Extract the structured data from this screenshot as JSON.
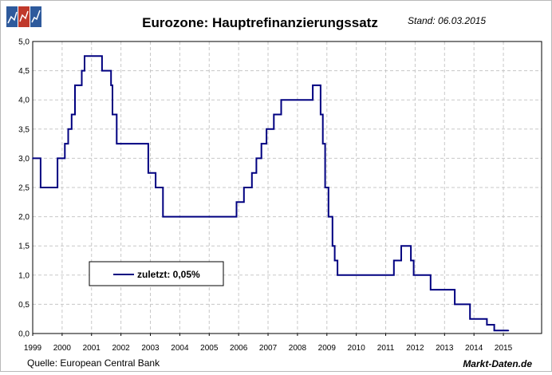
{
  "chart_data": {
    "type": "line",
    "title": "Eurozone: Hauptrefinanzierungssatz",
    "stand": "Stand: 06.03.2015",
    "source": "Quelle: European Central Bank",
    "brand": "Markt-Daten.de",
    "legend": {
      "label": "zuletzt: 0,05%",
      "placement": "bottom-left"
    },
    "xlabel": "",
    "ylabel": "",
    "xlim": [
      1999,
      2016.3
    ],
    "ylim": [
      0,
      5
    ],
    "grid": true,
    "x_ticks": [
      "1999",
      "2000",
      "2001",
      "2002",
      "2003",
      "2004",
      "2005",
      "2006",
      "2007",
      "2008",
      "2009",
      "2010",
      "2011",
      "2012",
      "2013",
      "2014",
      "2015"
    ],
    "y_ticks": [
      "0,0",
      "0,5",
      "1,0",
      "1,5",
      "2,0",
      "2,5",
      "3,0",
      "3,5",
      "4,0",
      "4,5",
      "5,0"
    ],
    "series": [
      {
        "name": "",
        "color": "#000080",
        "step": "post",
        "points": [
          [
            "1999-01-01",
            3.0
          ],
          [
            "1999-04-09",
            2.5
          ],
          [
            "1999-11-05",
            3.0
          ],
          [
            "2000-02-04",
            3.25
          ],
          [
            "2000-03-17",
            3.5
          ],
          [
            "2000-04-28",
            3.75
          ],
          [
            "2000-06-09",
            4.25
          ],
          [
            "2000-09-01",
            4.5
          ],
          [
            "2000-10-06",
            4.75
          ],
          [
            "2001-05-11",
            4.5
          ],
          [
            "2001-08-31",
            4.25
          ],
          [
            "2001-09-18",
            3.75
          ],
          [
            "2001-11-09",
            3.25
          ],
          [
            "2002-12-06",
            2.75
          ],
          [
            "2003-03-07",
            2.5
          ],
          [
            "2003-06-06",
            2.0
          ],
          [
            "2005-12-06",
            2.25
          ],
          [
            "2006-03-08",
            2.5
          ],
          [
            "2006-06-15",
            2.75
          ],
          [
            "2006-08-09",
            3.0
          ],
          [
            "2006-10-11",
            3.25
          ],
          [
            "2006-12-13",
            3.5
          ],
          [
            "2007-03-14",
            3.75
          ],
          [
            "2007-06-13",
            4.0
          ],
          [
            "2008-07-09",
            4.25
          ],
          [
            "2008-10-15",
            3.75
          ],
          [
            "2008-11-12",
            3.25
          ],
          [
            "2008-12-10",
            2.5
          ],
          [
            "2009-01-21",
            2.0
          ],
          [
            "2009-03-11",
            1.5
          ],
          [
            "2009-04-08",
            1.25
          ],
          [
            "2009-05-13",
            1.0
          ],
          [
            "2011-04-13",
            1.25
          ],
          [
            "2011-07-13",
            1.5
          ],
          [
            "2011-11-09",
            1.25
          ],
          [
            "2011-12-14",
            1.0
          ],
          [
            "2012-07-11",
            0.75
          ],
          [
            "2013-05-08",
            0.5
          ],
          [
            "2013-11-13",
            0.25
          ],
          [
            "2014-06-11",
            0.15
          ],
          [
            "2014-09-10",
            0.05
          ],
          [
            "2015-03-06",
            0.05
          ]
        ]
      }
    ]
  },
  "logo": {
    "colors": [
      "#2e5a9c",
      "#c0392b",
      "#2e5a9c"
    ]
  }
}
